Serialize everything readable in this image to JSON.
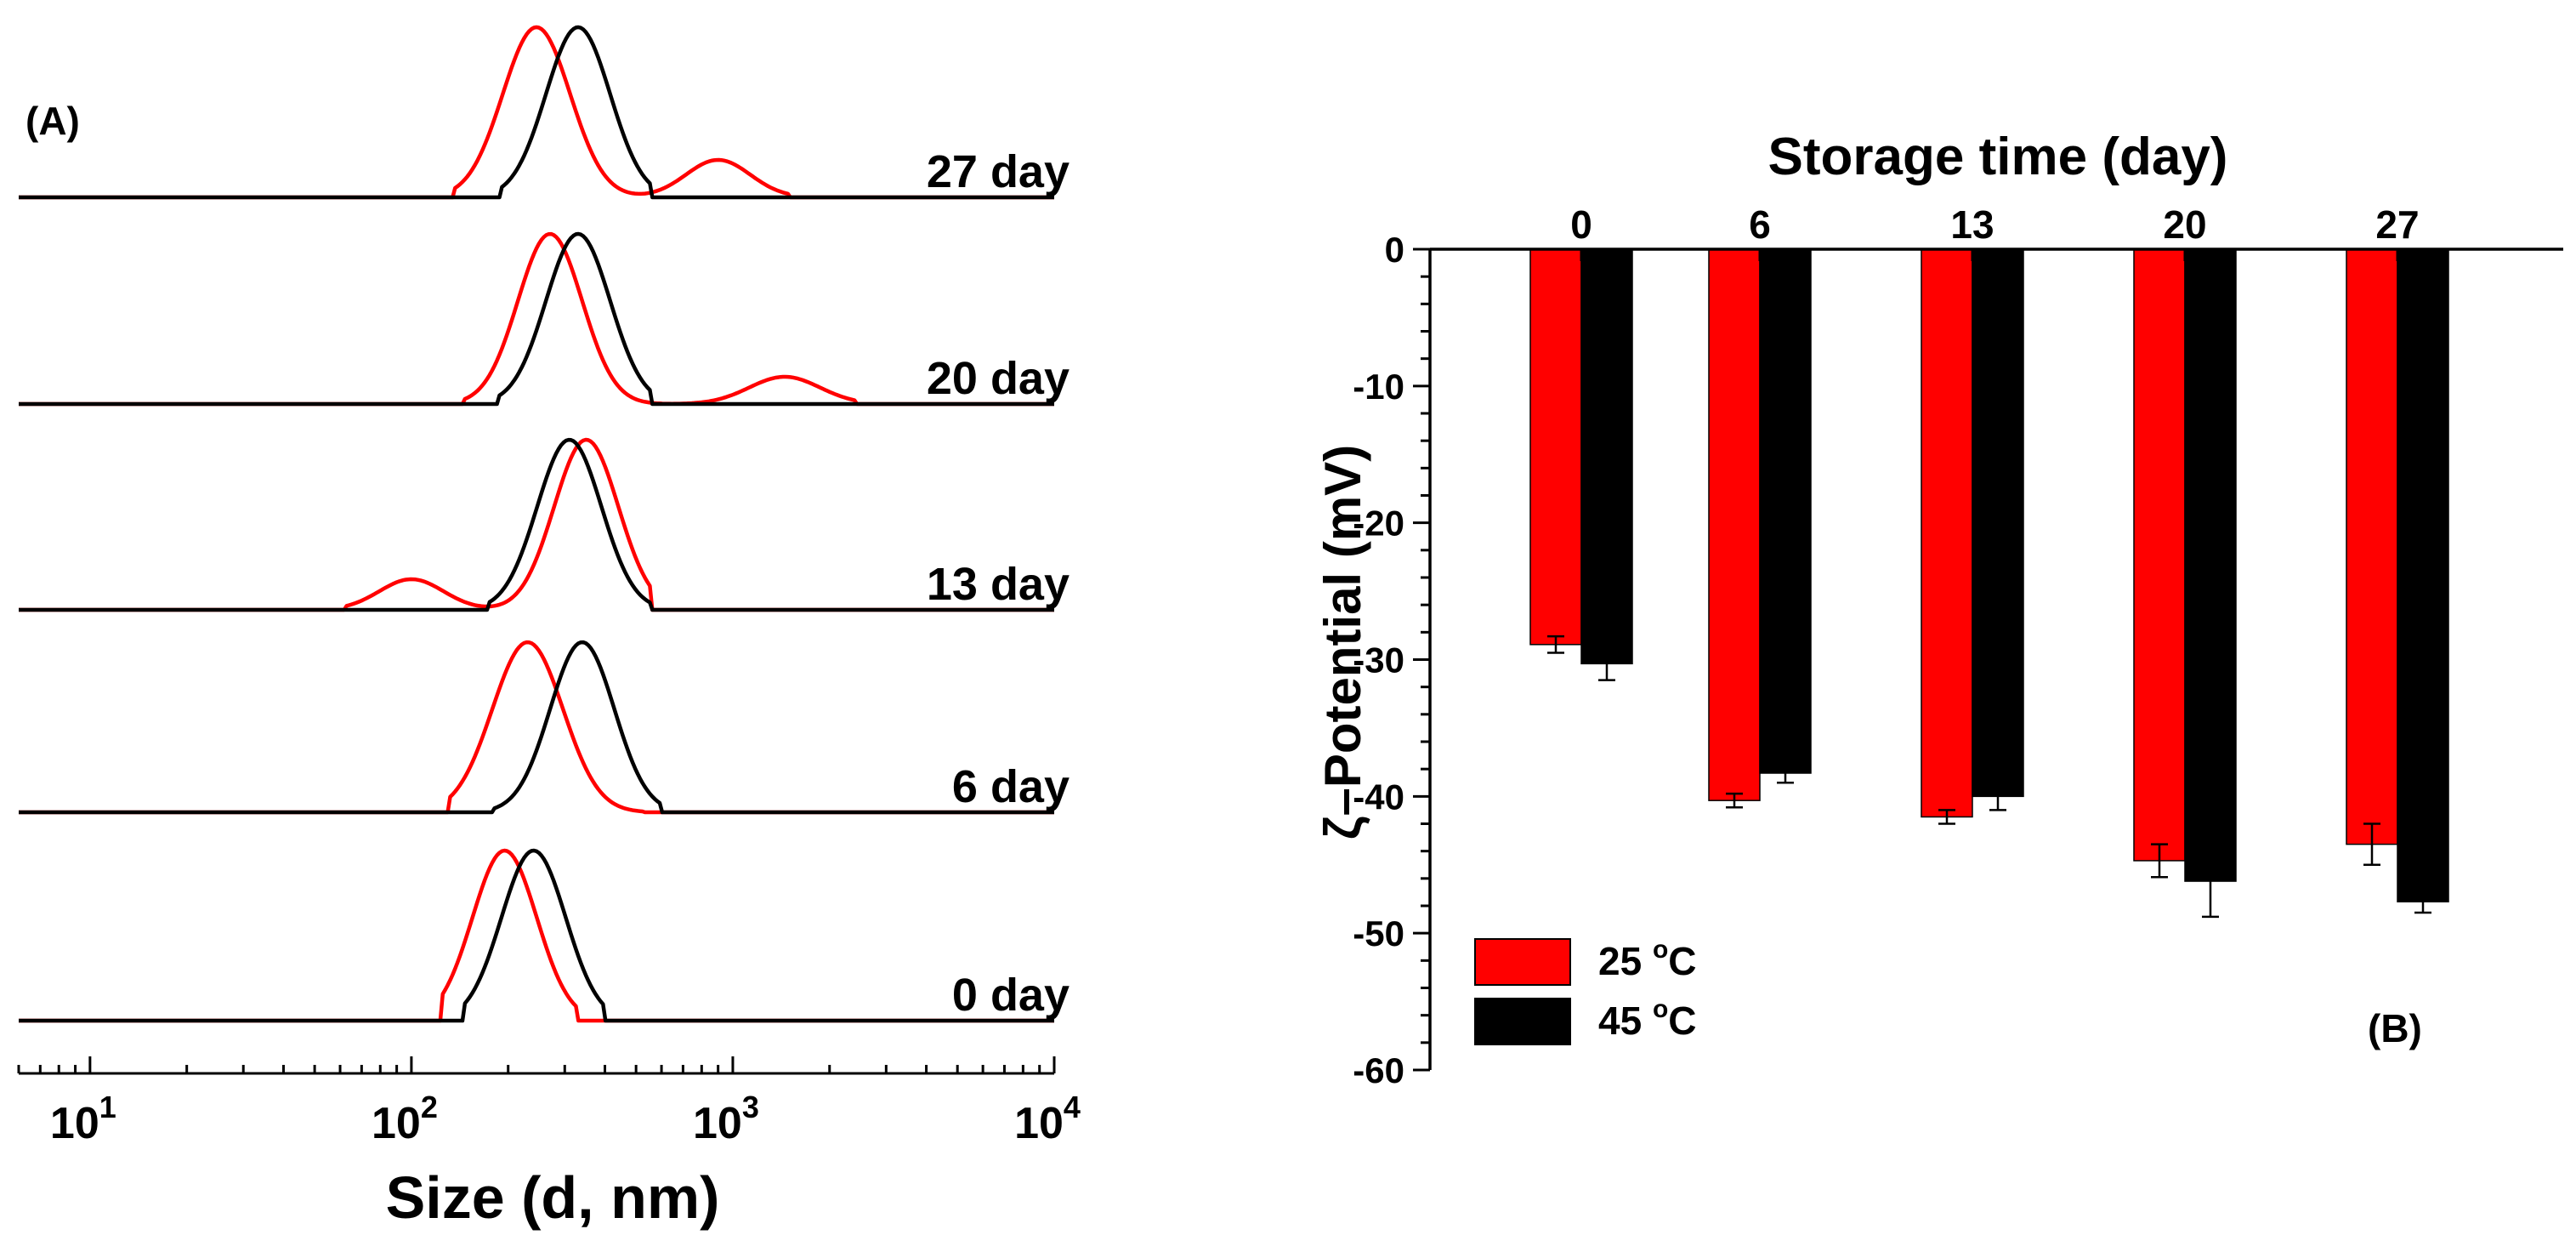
{
  "chart_data": [
    {
      "type": "line",
      "panel_label": "(A)",
      "xlabel": "Size (d, nm)",
      "xscale": "log",
      "xlim": [
        6,
        10000
      ],
      "xticks": [
        {
          "base": "10",
          "exp": "1",
          "value": 10
        },
        {
          "base": "10",
          "exp": "2",
          "value": 100
        },
        {
          "base": "10",
          "exp": "3",
          "value": 1000
        },
        {
          "base": "10",
          "exp": "4",
          "value": 10000
        }
      ],
      "offsets": [
        {
          "label": "27 day",
          "series": [
            {
              "name": "25 °C",
              "color": "#ff0000",
              "peaks": [
                {
                  "center": 245,
                  "height": 1.0,
                  "width": 0.105
                },
                {
                  "center": 900,
                  "height": 0.22,
                  "width": 0.1
                }
              ],
              "range": [
                135,
                1500
              ]
            },
            {
              "name": "45 °C",
              "color": "#000000",
              "peaks": [
                {
                  "center": 330,
                  "height": 1.0,
                  "width": 0.1
                }
              ],
              "range": [
                190,
                560
              ]
            }
          ]
        },
        {
          "label": "20 day",
          "series": [
            {
              "name": "25 °C",
              "color": "#ff0000",
              "peaks": [
                {
                  "center": 270,
                  "height": 1.0,
                  "width": 0.1
                },
                {
                  "center": 1450,
                  "height": 0.16,
                  "width": 0.11
                }
              ],
              "range": [
                145,
                2400
              ]
            },
            {
              "name": "45 °C",
              "color": "#000000",
              "peaks": [
                {
                  "center": 330,
                  "height": 1.0,
                  "width": 0.1
                }
              ],
              "range": [
                185,
                560
              ]
            }
          ]
        },
        {
          "label": "13 day",
          "series": [
            {
              "name": "25 °C",
              "color": "#ff0000",
              "peaks": [
                {
                  "center": 350,
                  "height": 1.0,
                  "width": 0.1
                },
                {
                  "center": 100,
                  "height": 0.18,
                  "width": 0.1
                }
              ],
              "range": [
                62,
                560
              ]
            },
            {
              "name": "45 °C",
              "color": "#000000",
              "peaks": [
                {
                  "center": 310,
                  "height": 1.0,
                  "width": 0.1
                }
              ],
              "range": [
                175,
                560
              ]
            }
          ]
        },
        {
          "label": "6 day",
          "series": [
            {
              "name": "25 °C",
              "color": "#ff0000",
              "peaks": [
                {
                  "center": 230,
                  "height": 1.0,
                  "width": 0.11
                }
              ],
              "range": [
                130,
                530
              ]
            },
            {
              "name": "45 °C",
              "color": "#000000",
              "peaks": [
                {
                  "center": 340,
                  "height": 1.0,
                  "width": 0.1
                }
              ],
              "range": [
                180,
                600
              ]
            }
          ]
        },
        {
          "label": "0 day",
          "series": [
            {
              "name": "25 °C",
              "color": "#ff0000",
              "peaks": [
                {
                  "center": 195,
                  "height": 1.0,
                  "width": 0.1
                }
              ],
              "range": [
                125,
                325
              ]
            },
            {
              "name": "45 °C",
              "color": "#000000",
              "peaks": [
                {
                  "center": 240,
                  "height": 1.0,
                  "width": 0.1
                }
              ],
              "range": [
                145,
                400
              ]
            }
          ]
        }
      ]
    },
    {
      "type": "bar",
      "panel_label": "(B)",
      "title": "Storage time (day)",
      "xlabel": "Storage time (day)",
      "ylabel": "ζ–Potential (mV)",
      "ylim": [
        -60,
        0
      ],
      "yticks": [
        "0",
        "-10",
        "-20",
        "-30",
        "-40",
        "-50",
        "-60"
      ],
      "categories": [
        "0",
        "6",
        "13",
        "20",
        "27"
      ],
      "series": [
        {
          "name": "25 °C",
          "name_main": "25 ",
          "name_deg": "o",
          "name_unit": "C",
          "color": "#ff0000",
          "values": [
            -28.9,
            -40.3,
            -41.5,
            -44.7,
            -43.5
          ],
          "errors": [
            0.6,
            0.5,
            0.5,
            1.2,
            1.5
          ]
        },
        {
          "name": "45 °C",
          "name_main": "45 ",
          "name_deg": "o",
          "name_unit": "C",
          "color": "#000000",
          "values": [
            -30.3,
            -38.3,
            -40.0,
            -46.2,
            -47.7
          ],
          "errors": [
            1.2,
            0.7,
            1.0,
            2.6,
            0.8
          ]
        }
      ],
      "legend_position": "bottom-left"
    }
  ]
}
